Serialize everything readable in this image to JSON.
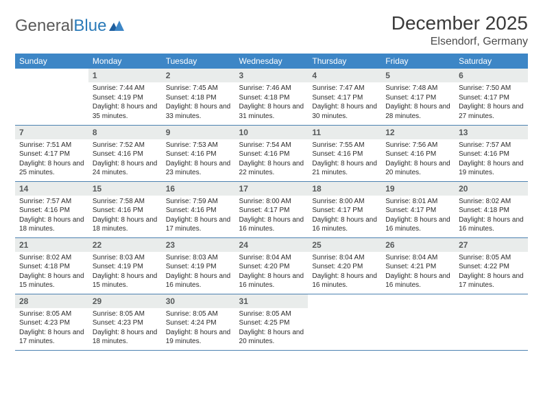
{
  "brand": {
    "part1": "General",
    "part2": "Blue"
  },
  "title": {
    "month": "December 2025",
    "location": "Elsendorf, Germany"
  },
  "colors": {
    "header_bg": "#3d86c6",
    "header_fg": "#ffffff",
    "daynum_bg": "#e9eceb",
    "daynum_fg": "#56595a",
    "row_border": "#4a80b0",
    "logo_gray": "#5a5a5a",
    "logo_blue": "#2a7ab8"
  },
  "weekdays": [
    "Sunday",
    "Monday",
    "Tuesday",
    "Wednesday",
    "Thursday",
    "Friday",
    "Saturday"
  ],
  "weeks": [
    [
      null,
      {
        "n": "1",
        "sr": "7:44 AM",
        "ss": "4:19 PM",
        "dl": "8 hours and 35 minutes."
      },
      {
        "n": "2",
        "sr": "7:45 AM",
        "ss": "4:18 PM",
        "dl": "8 hours and 33 minutes."
      },
      {
        "n": "3",
        "sr": "7:46 AM",
        "ss": "4:18 PM",
        "dl": "8 hours and 31 minutes."
      },
      {
        "n": "4",
        "sr": "7:47 AM",
        "ss": "4:17 PM",
        "dl": "8 hours and 30 minutes."
      },
      {
        "n": "5",
        "sr": "7:48 AM",
        "ss": "4:17 PM",
        "dl": "8 hours and 28 minutes."
      },
      {
        "n": "6",
        "sr": "7:50 AM",
        "ss": "4:17 PM",
        "dl": "8 hours and 27 minutes."
      }
    ],
    [
      {
        "n": "7",
        "sr": "7:51 AM",
        "ss": "4:17 PM",
        "dl": "8 hours and 25 minutes."
      },
      {
        "n": "8",
        "sr": "7:52 AM",
        "ss": "4:16 PM",
        "dl": "8 hours and 24 minutes."
      },
      {
        "n": "9",
        "sr": "7:53 AM",
        "ss": "4:16 PM",
        "dl": "8 hours and 23 minutes."
      },
      {
        "n": "10",
        "sr": "7:54 AM",
        "ss": "4:16 PM",
        "dl": "8 hours and 22 minutes."
      },
      {
        "n": "11",
        "sr": "7:55 AM",
        "ss": "4:16 PM",
        "dl": "8 hours and 21 minutes."
      },
      {
        "n": "12",
        "sr": "7:56 AM",
        "ss": "4:16 PM",
        "dl": "8 hours and 20 minutes."
      },
      {
        "n": "13",
        "sr": "7:57 AM",
        "ss": "4:16 PM",
        "dl": "8 hours and 19 minutes."
      }
    ],
    [
      {
        "n": "14",
        "sr": "7:57 AM",
        "ss": "4:16 PM",
        "dl": "8 hours and 18 minutes."
      },
      {
        "n": "15",
        "sr": "7:58 AM",
        "ss": "4:16 PM",
        "dl": "8 hours and 18 minutes."
      },
      {
        "n": "16",
        "sr": "7:59 AM",
        "ss": "4:16 PM",
        "dl": "8 hours and 17 minutes."
      },
      {
        "n": "17",
        "sr": "8:00 AM",
        "ss": "4:17 PM",
        "dl": "8 hours and 16 minutes."
      },
      {
        "n": "18",
        "sr": "8:00 AM",
        "ss": "4:17 PM",
        "dl": "8 hours and 16 minutes."
      },
      {
        "n": "19",
        "sr": "8:01 AM",
        "ss": "4:17 PM",
        "dl": "8 hours and 16 minutes."
      },
      {
        "n": "20",
        "sr": "8:02 AM",
        "ss": "4:18 PM",
        "dl": "8 hours and 16 minutes."
      }
    ],
    [
      {
        "n": "21",
        "sr": "8:02 AM",
        "ss": "4:18 PM",
        "dl": "8 hours and 15 minutes."
      },
      {
        "n": "22",
        "sr": "8:03 AM",
        "ss": "4:19 PM",
        "dl": "8 hours and 15 minutes."
      },
      {
        "n": "23",
        "sr": "8:03 AM",
        "ss": "4:19 PM",
        "dl": "8 hours and 16 minutes."
      },
      {
        "n": "24",
        "sr": "8:04 AM",
        "ss": "4:20 PM",
        "dl": "8 hours and 16 minutes."
      },
      {
        "n": "25",
        "sr": "8:04 AM",
        "ss": "4:20 PM",
        "dl": "8 hours and 16 minutes."
      },
      {
        "n": "26",
        "sr": "8:04 AM",
        "ss": "4:21 PM",
        "dl": "8 hours and 16 minutes."
      },
      {
        "n": "27",
        "sr": "8:05 AM",
        "ss": "4:22 PM",
        "dl": "8 hours and 17 minutes."
      }
    ],
    [
      {
        "n": "28",
        "sr": "8:05 AM",
        "ss": "4:23 PM",
        "dl": "8 hours and 17 minutes."
      },
      {
        "n": "29",
        "sr": "8:05 AM",
        "ss": "4:23 PM",
        "dl": "8 hours and 18 minutes."
      },
      {
        "n": "30",
        "sr": "8:05 AM",
        "ss": "4:24 PM",
        "dl": "8 hours and 19 minutes."
      },
      {
        "n": "31",
        "sr": "8:05 AM",
        "ss": "4:25 PM",
        "dl": "8 hours and 20 minutes."
      },
      null,
      null,
      null
    ]
  ],
  "labels": {
    "sunrise": "Sunrise:",
    "sunset": "Sunset:",
    "daylight": "Daylight:"
  }
}
